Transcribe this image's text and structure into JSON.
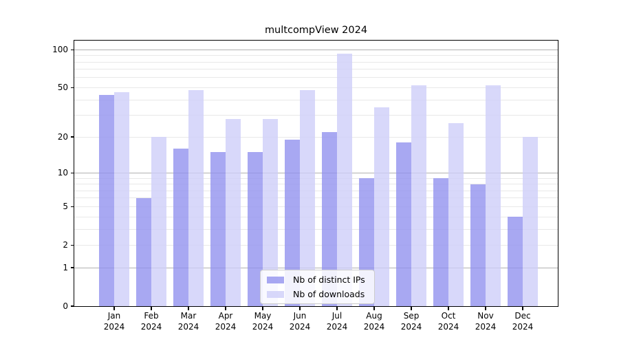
{
  "chart_data": {
    "type": "bar",
    "title": "multcompView 2024",
    "year": "2024",
    "categories": [
      "Jan",
      "Feb",
      "Mar",
      "Apr",
      "May",
      "Jun",
      "Jul",
      "Aug",
      "Sep",
      "Oct",
      "Nov",
      "Dec"
    ],
    "series": [
      {
        "name": "Nb of distinct IPs",
        "color": "rgba(146,146,239,0.8)",
        "values": [
          44,
          6,
          16,
          15,
          15,
          19,
          22,
          9,
          18,
          9,
          8,
          4
        ]
      },
      {
        "name": "Nb of downloads",
        "color": "rgba(206,206,249,0.8)",
        "values": [
          46,
          20,
          48,
          28,
          28,
          48,
          93,
          35,
          52,
          26,
          52,
          20
        ]
      }
    ],
    "xlabel": "",
    "ylabel": "",
    "yscale": "log1p",
    "ylim": [
      0,
      118
    ],
    "yticks": [
      0,
      1,
      2,
      5,
      10,
      20,
      50,
      100
    ],
    "major_gridlines": [
      1,
      10,
      100
    ],
    "minor_gridlines": [
      2,
      3,
      4,
      5,
      6,
      7,
      8,
      9,
      20,
      30,
      40,
      50,
      60,
      70,
      80,
      90
    ],
    "grid": "on",
    "legend_position": "lower center"
  },
  "colors": {
    "bar_distinct_ips": "rgba(146,146,239,0.8)",
    "bar_downloads": "rgba(206,206,249,0.8)",
    "grid_major": "#b0b0b0",
    "grid_minor": "#e8e8e8",
    "axis_line": "#000000",
    "legend_border": "#cccccc",
    "background": "#ffffff"
  }
}
